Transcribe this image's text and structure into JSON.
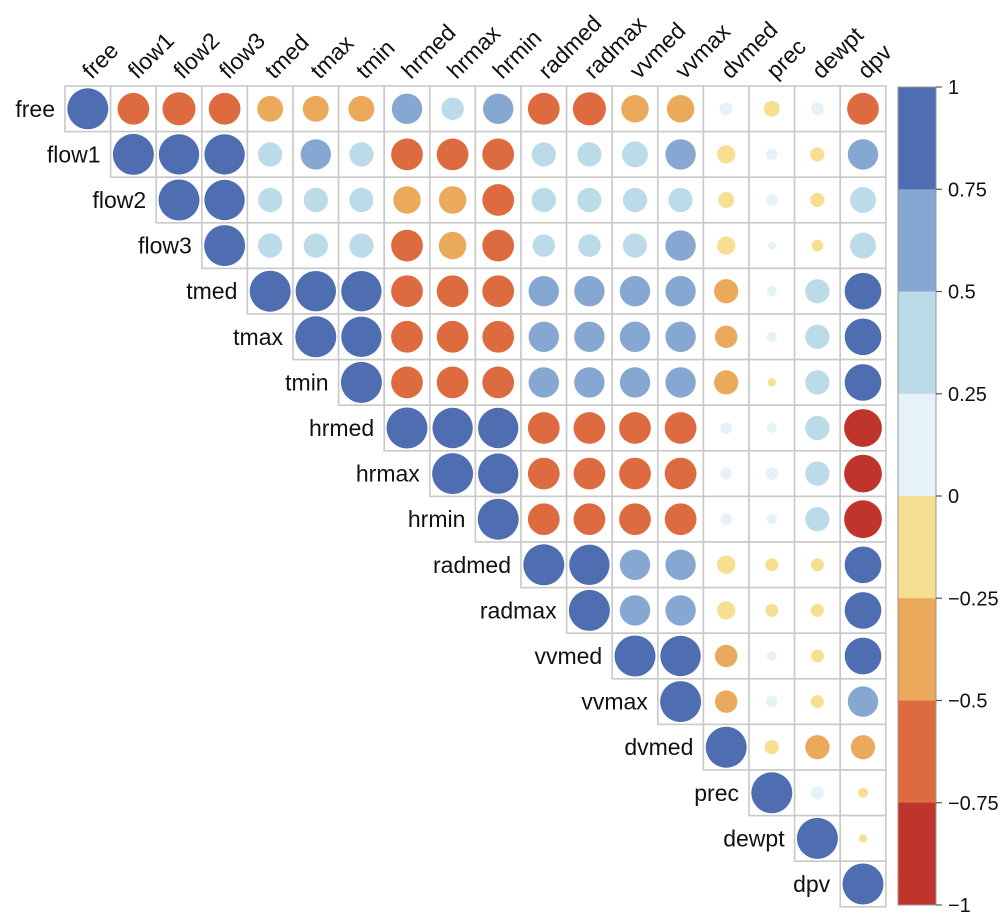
{
  "chart_data": {
    "type": "heatmap",
    "subtype": "correlation-upper-triangle",
    "title": "",
    "variables": [
      "free",
      "flow1",
      "flow2",
      "flow3",
      "tmed",
      "tmax",
      "tmin",
      "hrmed",
      "hrmax",
      "hrmin",
      "radmed",
      "radmax",
      "vvmed",
      "vvmax",
      "dvmed",
      "prec",
      "dewpt",
      "dpv"
    ],
    "correlations": [
      [
        1,
        -0.6,
        -0.65,
        -0.6,
        -0.4,
        -0.4,
        -0.4,
        0.55,
        0.3,
        0.55,
        -0.6,
        -0.65,
        -0.45,
        -0.45,
        0.1,
        -0.15,
        0.1,
        -0.6
      ],
      [
        null,
        1,
        0.97,
        0.97,
        0.35,
        0.55,
        0.35,
        -0.6,
        -0.6,
        -0.6,
        0.35,
        0.35,
        0.4,
        0.55,
        -0.2,
        0.08,
        -0.12,
        0.55
      ],
      [
        null,
        null,
        1,
        0.97,
        0.35,
        0.35,
        0.35,
        -0.45,
        -0.45,
        -0.6,
        0.35,
        0.35,
        0.35,
        0.35,
        -0.15,
        0.08,
        -0.12,
        0.4
      ],
      [
        null,
        null,
        null,
        1,
        0.35,
        0.35,
        0.35,
        -0.6,
        -0.45,
        -0.6,
        0.3,
        0.3,
        0.35,
        0.55,
        -0.2,
        0.04,
        -0.08,
        0.4
      ],
      [
        null,
        null,
        null,
        null,
        1,
        0.97,
        0.97,
        -0.6,
        -0.6,
        -0.6,
        0.55,
        0.55,
        0.55,
        0.55,
        -0.35,
        0.06,
        0.35,
        0.8
      ],
      [
        null,
        null,
        null,
        null,
        null,
        1,
        0.97,
        -0.6,
        -0.6,
        -0.6,
        0.55,
        0.55,
        0.55,
        0.55,
        -0.3,
        0.06,
        0.35,
        0.8
      ],
      [
        null,
        null,
        null,
        null,
        null,
        null,
        1,
        -0.6,
        -0.6,
        -0.6,
        0.55,
        0.55,
        0.55,
        0.55,
        -0.35,
        -0.04,
        0.35,
        0.8
      ],
      [
        null,
        null,
        null,
        null,
        null,
        null,
        null,
        1,
        0.97,
        0.97,
        -0.6,
        -0.6,
        -0.6,
        -0.6,
        0.08,
        0.06,
        0.35,
        -0.85
      ],
      [
        null,
        null,
        null,
        null,
        null,
        null,
        null,
        null,
        1,
        0.97,
        -0.6,
        -0.6,
        -0.6,
        -0.6,
        0.08,
        0.1,
        0.35,
        -0.85
      ],
      [
        null,
        null,
        null,
        null,
        null,
        null,
        null,
        null,
        null,
        1,
        -0.6,
        -0.6,
        -0.6,
        -0.6,
        0.08,
        0.06,
        0.35,
        -0.85
      ],
      [
        null,
        null,
        null,
        null,
        null,
        null,
        null,
        null,
        null,
        null,
        1,
        0.97,
        0.55,
        0.55,
        -0.2,
        -0.1,
        -0.1,
        0.8
      ],
      [
        null,
        null,
        null,
        null,
        null,
        null,
        null,
        null,
        null,
        null,
        null,
        1,
        0.55,
        0.55,
        -0.2,
        -0.1,
        -0.1,
        0.8
      ],
      [
        null,
        null,
        null,
        null,
        null,
        null,
        null,
        null,
        null,
        null,
        null,
        null,
        1,
        0.97,
        -0.3,
        0.06,
        -0.1,
        0.8
      ],
      [
        null,
        null,
        null,
        null,
        null,
        null,
        null,
        null,
        null,
        null,
        null,
        null,
        null,
        1,
        -0.3,
        0.08,
        -0.1,
        0.55
      ],
      [
        null,
        null,
        null,
        null,
        null,
        null,
        null,
        null,
        null,
        null,
        null,
        null,
        null,
        null,
        1,
        -0.12,
        -0.35,
        -0.35
      ],
      [
        null,
        null,
        null,
        null,
        null,
        null,
        null,
        null,
        null,
        null,
        null,
        null,
        null,
        null,
        null,
        1,
        0.1,
        -0.06
      ],
      [
        null,
        null,
        null,
        null,
        null,
        null,
        null,
        null,
        null,
        null,
        null,
        null,
        null,
        null,
        null,
        null,
        1,
        -0.04
      ],
      [
        null,
        null,
        null,
        null,
        null,
        null,
        null,
        null,
        null,
        null,
        null,
        null,
        null,
        null,
        null,
        null,
        null,
        1
      ]
    ],
    "legend": {
      "position": "right",
      "ticks": [
        "1",
        "0.75",
        "0.5",
        "0.25",
        "0",
        "−0.25",
        "−0.5",
        "−0.75",
        "−1"
      ],
      "bins": [
        {
          "from": 0.75,
          "to": 1,
          "color": "#4f6db1"
        },
        {
          "from": 0.5,
          "to": 0.75,
          "color": "#85a7d1"
        },
        {
          "from": 0.25,
          "to": 0.5,
          "color": "#bcdbe9"
        },
        {
          "from": 0,
          "to": 0.25,
          "color": "#e5f2f8"
        },
        {
          "from": -0.25,
          "to": 0,
          "color": "#f6df90"
        },
        {
          "from": -0.5,
          "to": -0.25,
          "color": "#eba95c"
        },
        {
          "from": -0.75,
          "to": -0.5,
          "color": "#de6a3f"
        },
        {
          "from": -1,
          "to": -0.75,
          "color": "#c0352b"
        }
      ]
    },
    "grid_color": "#c9c9c9"
  }
}
